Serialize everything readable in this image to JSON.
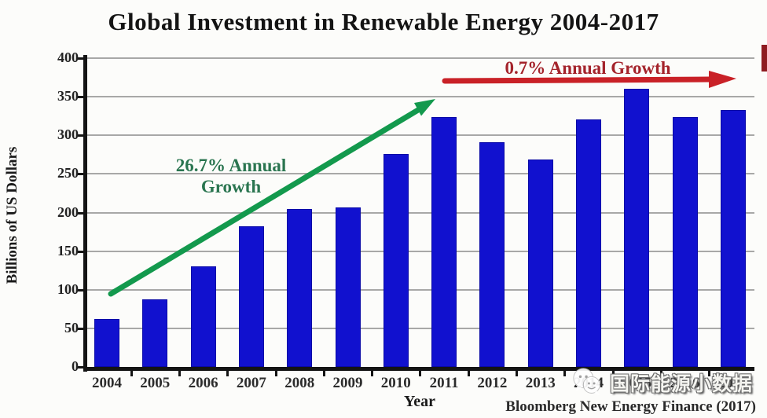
{
  "chart_data": {
    "type": "bar",
    "title": "Global Investment in Renewable Energy 2004-2017",
    "xlabel": "Year",
    "ylabel": "Billions of US Dollars",
    "categories": [
      "2004",
      "2005",
      "2006",
      "2007",
      "2008",
      "2009",
      "2010",
      "2011",
      "2012",
      "2013",
      "2014",
      "2015",
      "2016",
      "2017"
    ],
    "values": [
      62,
      88,
      130,
      182,
      205,
      207,
      276,
      324,
      291,
      269,
      321,
      360,
      324,
      333
    ],
    "ylim": [
      0,
      400
    ],
    "ytick_step": 50,
    "yticks": [
      0,
      50,
      100,
      150,
      200,
      250,
      300,
      350,
      400
    ],
    "grid": true,
    "legend_position": "none",
    "bar_color": "#1111cf",
    "bar_border_color": "#0909a6",
    "grid_color": "#8f8f8f",
    "axis_color": "#141414",
    "annotations": {
      "growth_up": {
        "line1": "26.7% Annual",
        "line2": "Growth",
        "text": "26.7% Annual Growth",
        "text_color": "#2a7550",
        "arrow_color": "#13994d",
        "arrow": "diagonal-up-right"
      },
      "growth_flat": {
        "text": "0.7% Annual Growth",
        "text_color": "#a4232b",
        "arrow_color": "#c92127",
        "arrow": "horizontal-right"
      }
    },
    "source": "Bloomberg New Energy Finance (2017)"
  },
  "watermark": {
    "text": "国际能源小数据",
    "icon": "wechat-bubbles-icon"
  }
}
